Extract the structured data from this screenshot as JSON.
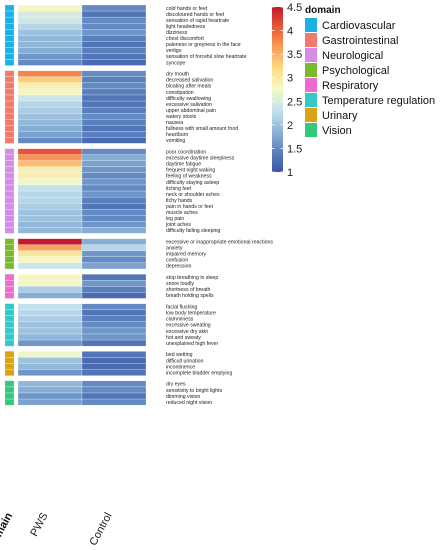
{
  "chart_data": {
    "type": "heatmap",
    "columns": [
      "PWS",
      "Control"
    ],
    "row_annotation_title": "domain",
    "legend_title": "domain",
    "color_scale": {
      "min": 1,
      "max": 4.5,
      "ticks": [
        1,
        1.5,
        2,
        2.5,
        3,
        3.5,
        4,
        4.5
      ],
      "tick_labels": [
        "1",
        "1.5",
        "2",
        "2.5",
        "3",
        "3.5",
        "4",
        "4.5"
      ],
      "stops": [
        "#3a57a6",
        "#5c83bf",
        "#8fb6d8",
        "#c5e1ee",
        "#f4f9c8",
        "#fddc86",
        "#f8a15a",
        "#ea5a36",
        "#c2192c"
      ]
    },
    "domains": [
      {
        "name": "Cardiovascular",
        "color": "#1ab0e8"
      },
      {
        "name": "Gastrointestinal",
        "color": "#f07a6c"
      },
      {
        "name": "Neurological",
        "color": "#d58be8"
      },
      {
        "name": "Psychological",
        "color": "#7cb82c"
      },
      {
        "name": "Respiratory",
        "color": "#ee6bd0"
      },
      {
        "name": "Temperature regulation",
        "color": "#34c8c8"
      },
      {
        "name": "Urinary",
        "color": "#d8a413"
      },
      {
        "name": "Vision",
        "color": "#34c87a"
      }
    ],
    "groups": [
      {
        "domain": "Cardiovascular",
        "rows": [
          {
            "label": "cold hands or feet",
            "values": [
              2.8,
              1.5
            ]
          },
          {
            "label": "discoloured hands or feet",
            "values": [
              2.5,
              1.3
            ]
          },
          {
            "label": "sensation of rapid heartrate",
            "values": [
              2.4,
              1.5
            ]
          },
          {
            "label": "light headedness",
            "values": [
              2.2,
              1.5
            ]
          },
          {
            "label": "dizziness",
            "values": [
              2.0,
              1.6
            ]
          },
          {
            "label": "chest discomfort",
            "values": [
              1.9,
              1.4
            ]
          },
          {
            "label": "paleness or greyness in the face",
            "values": [
              1.9,
              1.3
            ]
          },
          {
            "label": "vertigo",
            "values": [
              1.8,
              1.4
            ]
          },
          {
            "label": "sensation of forceful slow heartrate",
            "values": [
              1.6,
              1.3
            ]
          },
          {
            "label": "syncope",
            "values": [
              1.5,
              1.2
            ]
          }
        ]
      },
      {
        "domain": "Gastrointestinal",
        "rows": [
          {
            "label": "dry mouth",
            "values": [
              3.8,
              1.5
            ]
          },
          {
            "label": "decreased salivation",
            "values": [
              3.3,
              1.4
            ]
          },
          {
            "label": "bloating after meals",
            "values": [
              2.9,
              1.5
            ]
          },
          {
            "label": "constipation",
            "values": [
              2.8,
              1.4
            ]
          },
          {
            "label": "difficulty swallowing",
            "values": [
              2.4,
              1.3
            ]
          },
          {
            "label": "excessive salivation",
            "values": [
              2.2,
              1.3
            ]
          },
          {
            "label": "upper abdominal pain",
            "values": [
              2.1,
              1.4
            ]
          },
          {
            "label": "watery stools",
            "values": [
              2.0,
              1.5
            ]
          },
          {
            "label": "nausea",
            "values": [
              1.9,
              1.4
            ]
          },
          {
            "label": "fullness with small amount food",
            "values": [
              1.8,
              1.3
            ]
          },
          {
            "label": "heartburn",
            "values": [
              1.7,
              1.4
            ]
          },
          {
            "label": "vomiting",
            "values": [
              1.5,
              1.2
            ]
          }
        ]
      },
      {
        "domain": "Neurological",
        "rows": [
          {
            "label": "poor coordination",
            "values": [
              4.1,
              1.5
            ]
          },
          {
            "label": "excessive daytime sleepiness",
            "values": [
              3.7,
              1.8
            ]
          },
          {
            "label": "daytime fatigue",
            "values": [
              3.4,
              1.7
            ]
          },
          {
            "label": "frequent night waking",
            "values": [
              2.9,
              1.6
            ]
          },
          {
            "label": "feeling of weakness",
            "values": [
              2.9,
              1.5
            ]
          },
          {
            "label": "difficulty staying asleep",
            "values": [
              2.7,
              1.6
            ]
          },
          {
            "label": "itching feet",
            "values": [
              2.3,
              1.5
            ]
          },
          {
            "label": "neck or shoulder aches",
            "values": [
              2.2,
              1.6
            ]
          },
          {
            "label": "itchy hands",
            "values": [
              2.2,
              1.4
            ]
          },
          {
            "label": "pain in hands or feet",
            "values": [
              2.1,
              1.3
            ]
          },
          {
            "label": "muscle aches",
            "values": [
              2.0,
              1.5
            ]
          },
          {
            "label": "leg pain",
            "values": [
              2.0,
              1.5
            ]
          },
          {
            "label": "joint aches",
            "values": [
              1.9,
              1.6
            ]
          },
          {
            "label": "difficulty falling sleeping",
            "values": [
              1.9,
              1.8
            ]
          }
        ]
      },
      {
        "domain": "Psychological",
        "rows": [
          {
            "label": "excessive or inappropriate emotional reactions",
            "values": [
              4.5,
              1.8
            ]
          },
          {
            "label": "anxiety",
            "values": [
              3.6,
              2.2
            ]
          },
          {
            "label": "impaired memory",
            "values": [
              3.0,
              1.6
            ]
          },
          {
            "label": "confusion",
            "values": [
              2.8,
              1.5
            ]
          },
          {
            "label": "depression",
            "values": [
              2.4,
              1.7
            ]
          }
        ]
      },
      {
        "domain": "Respiratory",
        "rows": [
          {
            "label": "stop breathing in sleep",
            "values": [
              2.8,
              1.3
            ]
          },
          {
            "label": "snore loudly",
            "values": [
              2.8,
              1.6
            ]
          },
          {
            "label": "shortness of breath",
            "values": [
              2.1,
              1.4
            ]
          },
          {
            "label": "breath holding spells",
            "values": [
              1.8,
              1.2
            ]
          }
        ]
      },
      {
        "domain": "Temperature regulation",
        "rows": [
          {
            "label": "facial flushing",
            "values": [
              2.3,
              1.5
            ]
          },
          {
            "label": "low body temperature",
            "values": [
              2.2,
              1.3
            ]
          },
          {
            "label": "clamminess",
            "values": [
              2.1,
              1.4
            ]
          },
          {
            "label": "excessive sweating",
            "values": [
              2.0,
              1.5
            ]
          },
          {
            "label": "excessive dry skin",
            "values": [
              2.0,
              1.6
            ]
          },
          {
            "label": "hot and sweaty",
            "values": [
              1.9,
              1.6
            ]
          },
          {
            "label": "unexplained high fever",
            "values": [
              1.6,
              1.3
            ]
          }
        ]
      },
      {
        "domain": "Urinary",
        "rows": [
          {
            "label": "bed wetting",
            "values": [
              2.7,
              1.3
            ]
          },
          {
            "label": "difficult urination",
            "values": [
              2.0,
              1.2
            ]
          },
          {
            "label": "incontinence",
            "values": [
              1.9,
              1.2
            ]
          },
          {
            "label": "incomplete bladder emptying",
            "values": [
              1.6,
              1.3
            ]
          }
        ]
      },
      {
        "domain": "Vision",
        "rows": [
          {
            "label": "dry eyes",
            "values": [
              1.9,
              1.5
            ]
          },
          {
            "label": "sensitivity to bright lights",
            "values": [
              1.8,
              1.5
            ]
          },
          {
            "label": "dimming vision",
            "values": [
              1.6,
              1.3
            ]
          },
          {
            "label": "reduced night vision",
            "values": [
              1.7,
              1.5
            ]
          }
        ]
      }
    ]
  }
}
